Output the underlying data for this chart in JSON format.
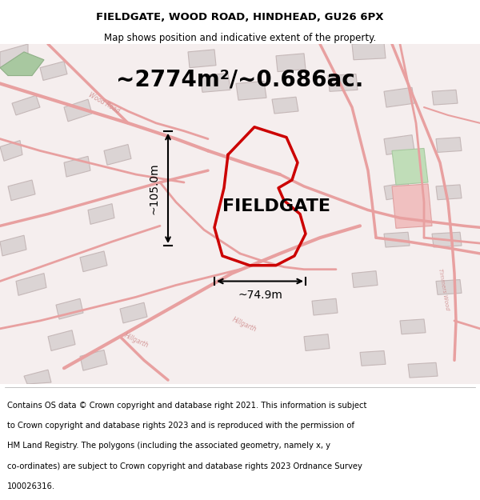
{
  "title_line1": "FIELDGATE, WOOD ROAD, HINDHEAD, GU26 6PX",
  "title_line2": "Map shows position and indicative extent of the property.",
  "area_text": "~2774m²/~0.686ac.",
  "property_name": "FIELDGATE",
  "dim_horizontal": "~74.9m",
  "dim_vertical": "~105.0m",
  "footer_lines": [
    "Contains OS data © Crown copyright and database right 2021. This information is subject",
    "to Crown copyright and database rights 2023 and is reproduced with the permission of",
    "HM Land Registry. The polygons (including the associated geometry, namely x, y",
    "co-ordinates) are subject to Crown copyright and database rights 2023 Ordnance Survey",
    "100026316."
  ],
  "map_bg": "#f5eeee",
  "road_color": "#e8a0a0",
  "building_fill": "#dbd4d4",
  "building_edge": "#c5b8b8",
  "plot_color": "#cc0000",
  "green_fill_left": "#a8c8a0",
  "green_fill_right": "#c0ddb8",
  "pink_fill_right": "#f0c0c0",
  "title_fontsize": 9.5,
  "subtitle_fontsize": 8.5,
  "area_fontsize": 20,
  "property_fontsize": 16,
  "dim_fontsize": 10,
  "footer_fontsize": 7.2,
  "road_label_color": "#d09090",
  "road_label_size": 5.5
}
